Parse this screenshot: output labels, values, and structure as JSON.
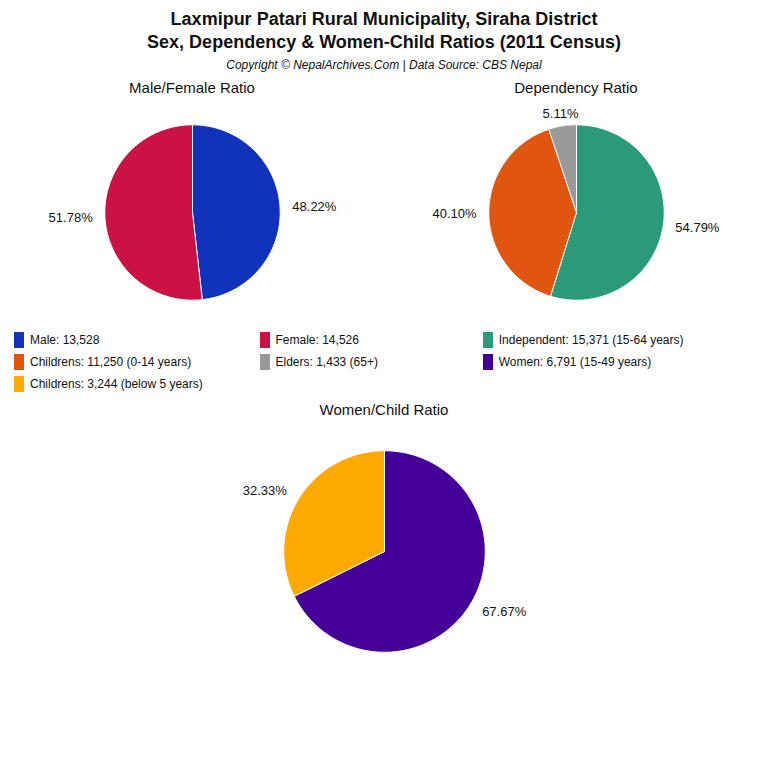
{
  "title": "Laxmipur Patari Rural Municipality, Siraha District",
  "subtitle": "Sex, Dependency & Women-Child Ratios (2011 Census)",
  "caption": "Copyright © NepalArchives.Com | Data Source: CBS Nepal",
  "chart_data": [
    {
      "type": "pie",
      "title": "Male/Female Ratio",
      "categories": [
        "Male: 13,528",
        "Female: 14,526"
      ],
      "values": [
        48.22,
        51.78
      ],
      "value_labels": [
        "48.22%",
        "51.78%"
      ],
      "colors": [
        "#1133bb",
        "#cc1144"
      ],
      "data_labels": true,
      "legend": "bottom"
    },
    {
      "type": "pie",
      "title": "Dependency Ratio",
      "categories": [
        "Independent: 15,371 (15-64 years)",
        "Childrens: 11,250 (0-14 years)",
        "Elders: 1,433 (65+)"
      ],
      "values": [
        54.79,
        40.1,
        5.11
      ],
      "value_labels": [
        "54.79%",
        "40.10%",
        "5.11%"
      ],
      "colors": [
        "#2a9a78",
        "#e05510",
        "#999999"
      ],
      "data_labels": true,
      "legend": "bottom"
    },
    {
      "type": "pie",
      "title": "Women/Child Ratio",
      "categories": [
        "Women: 6,791 (15-49 years)",
        "Childrens: 3,244 (below 5 years)"
      ],
      "values": [
        67.67,
        32.33
      ],
      "value_labels": [
        "67.67%",
        "32.33%"
      ],
      "colors": [
        "#440099",
        "#ffaa00"
      ],
      "data_labels": true,
      "legend": "top"
    }
  ]
}
